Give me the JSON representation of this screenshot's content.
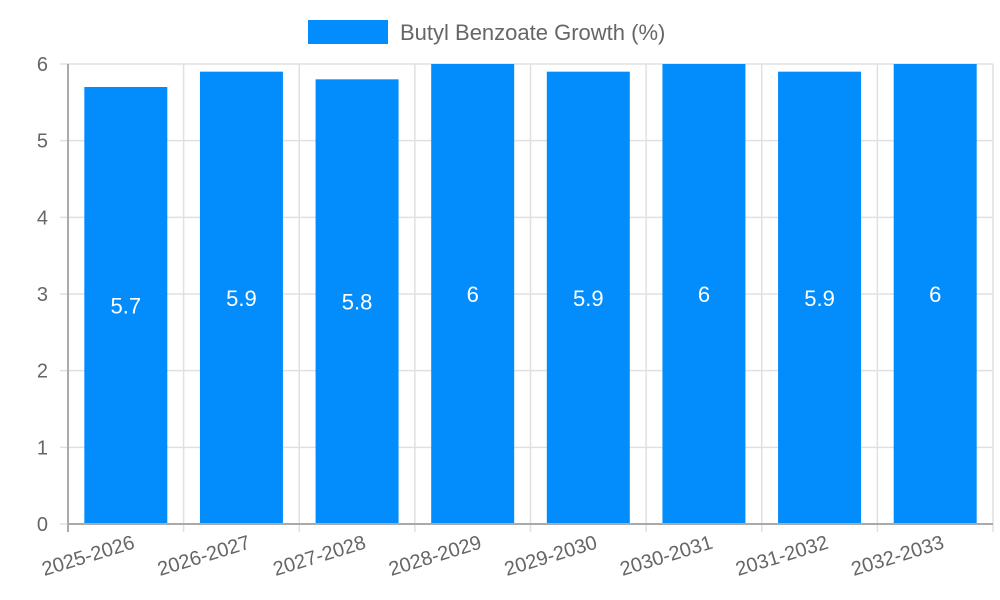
{
  "chart_data": {
    "type": "bar",
    "title": "",
    "legend": {
      "position": "top",
      "entries": [
        {
          "label": "Butyl Benzoate Growth (%)",
          "color": "#038cfc"
        }
      ]
    },
    "categories": [
      "2025-2026",
      "2026-2027",
      "2027-2028",
      "2028-2029",
      "2029-2030",
      "2030-2031",
      "2031-2032",
      "2032-2033"
    ],
    "series": [
      {
        "name": "Butyl Benzoate Growth (%)",
        "values": [
          5.7,
          5.9,
          5.8,
          6,
          5.9,
          6,
          5.9,
          6
        ],
        "color": "#038cfc"
      }
    ],
    "data_labels": [
      "5.7",
      "5.9",
      "5.8",
      "6",
      "5.9",
      "6",
      "5.9",
      "6"
    ],
    "xlabel": "",
    "ylabel": "",
    "ylim": [
      0,
      6
    ],
    "yticks": [
      0,
      1,
      2,
      3,
      4,
      5,
      6
    ],
    "grid": true
  }
}
